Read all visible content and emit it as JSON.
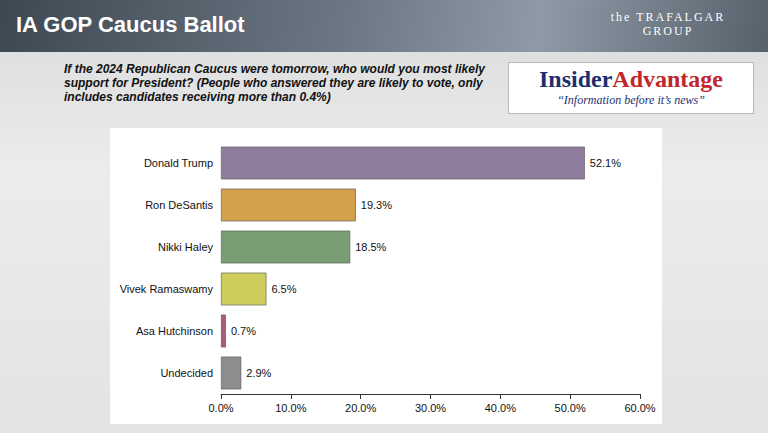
{
  "chart_data": {
    "type": "bar",
    "orientation": "horizontal",
    "title": "IA GOP Caucus Ballot",
    "subtitle": "If the 2024 Republican Caucus were tomorrow, who would you most likely support for President? (People who answered they are likely to vote, only includes candidates receiving more than 0.4%)",
    "annotations": [
      "the TRAFALGAR GROUP",
      "Insider",
      "Advantage",
      "“Information before it’s news”"
    ],
    "categories": [
      "Donald Trump",
      "Ron DeSantis",
      "Nikki Haley",
      "Vivek Ramaswamy",
      "Asa Hutchinson",
      "Undecided"
    ],
    "values": [
      52.1,
      19.3,
      18.5,
      6.5,
      0.7,
      2.9
    ],
    "value_labels": [
      "52.1%",
      "19.3%",
      "18.5%",
      "6.5%",
      "0.7%",
      "2.9%"
    ],
    "colors": [
      "#8f7b9b",
      "#d3a04c",
      "#7b9d73",
      "#cdcd5c",
      "#a85b7b",
      "#8e8e8e"
    ],
    "xlim": [
      0,
      60
    ],
    "xticks": [
      {
        "value": 0,
        "label": "0.0%"
      },
      {
        "value": 10,
        "label": "10.0%"
      },
      {
        "value": 20,
        "label": "20.0%"
      },
      {
        "value": 30,
        "label": "30.0%"
      },
      {
        "value": 40,
        "label": "40.0%"
      },
      {
        "value": 50,
        "label": "50.0%"
      },
      {
        "value": 60,
        "label": "60.0%"
      }
    ],
    "data_labels": true,
    "grid": false
  }
}
